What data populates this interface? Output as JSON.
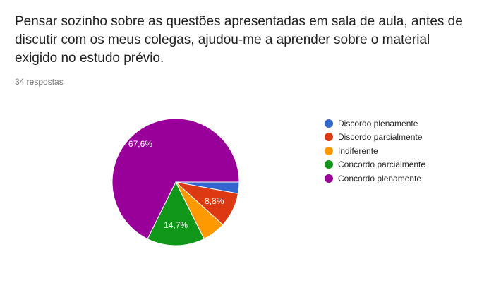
{
  "question": "Pensar sozinho sobre as questões apresentadas em sala de aula, antes de discutir com os meus colegas, ajudou-me a aprender sobre o material exigido no estudo prévio.",
  "response_count": "34 respostas",
  "chart_data": {
    "type": "pie",
    "title": "",
    "legend_position": "right",
    "slices": [
      {
        "label": "Discordo plenamente",
        "value": 2.9,
        "color": "#3366cc",
        "data_label": ""
      },
      {
        "label": "Discordo parcialmente",
        "value": 8.8,
        "color": "#dc3912",
        "data_label": "8,8%"
      },
      {
        "label": "Indiferente",
        "value": 5.9,
        "color": "#ff9900",
        "data_label": ""
      },
      {
        "label": "Concordo parcialmente",
        "value": 14.7,
        "color": "#109618",
        "data_label": "14,7%"
      },
      {
        "label": "Concordo plenamente",
        "value": 67.6,
        "color": "#990099",
        "data_label": "67,6%"
      }
    ]
  }
}
